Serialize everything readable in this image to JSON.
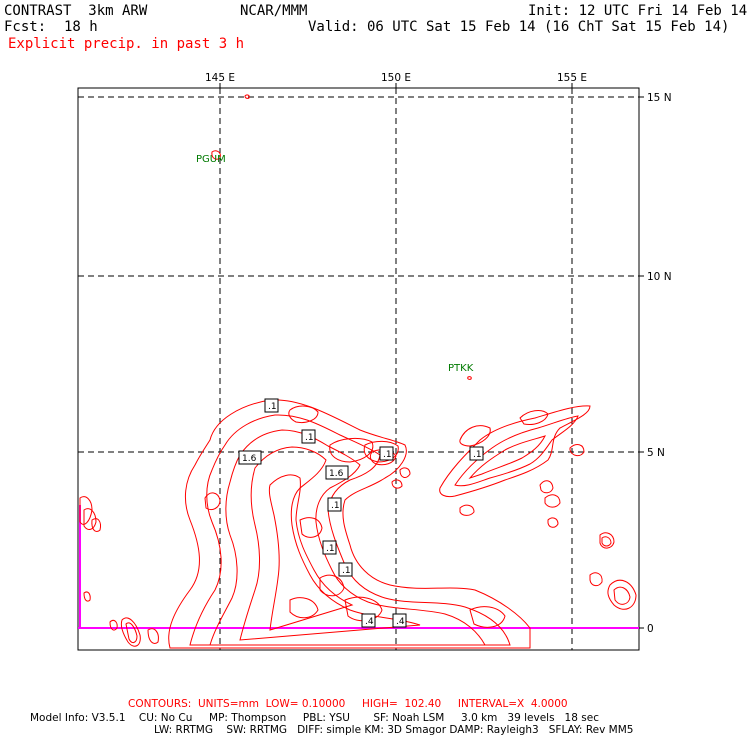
{
  "header": {
    "model": "CONTRAST  3km ARW",
    "org": "NCAR/MMM",
    "init": "Init: 12 UTC Fri 14 Feb 14",
    "fcst_label": "Fcst:",
    "fcst_value": "18 h",
    "valid": "Valid: 06 UTC Sat 15 Feb 14 (16 ChT Sat 15 Feb 14)",
    "field": "Explicit precip. in past 3 h"
  },
  "map": {
    "lon_labels": [
      "145 E",
      "150 E",
      "155 E"
    ],
    "lat_labels": [
      "15 N",
      "10 N",
      "5 N",
      "0"
    ],
    "stations": [
      {
        "id": "PGUM",
        "lon": 144.8,
        "lat": 13.5
      },
      {
        "id": "PTKK",
        "lon": 151.85,
        "lat": 7.45
      }
    ],
    "contour_labels": [
      ".1",
      "1.6",
      ".1",
      "1.6",
      ".1",
      ".1",
      ".1",
      ".1",
      ".4",
      ".4",
      ".1"
    ],
    "colors": {
      "precip": "#ff0000",
      "equator": "#ff00ff",
      "station": "#007a00",
      "grid": "#000000"
    }
  },
  "footer": {
    "contours": "CONTOURS:  UNITS=mm  LOW= 0.10000     HIGH=  102.40     INTERVAL=X  4.0000",
    "model_info_1": "Model Info: V3.5.1    CU: No Cu     MP: Thompson     PBL: YSU       SF: Noah LSM     3.0 km   39 levels   18 sec",
    "model_info_2": "LW: RRTMG    SW: RRTMG   DIFF: simple KM: 3D Smagor DAMP: Rayleigh3   SFLAY: Rev MM5"
  }
}
